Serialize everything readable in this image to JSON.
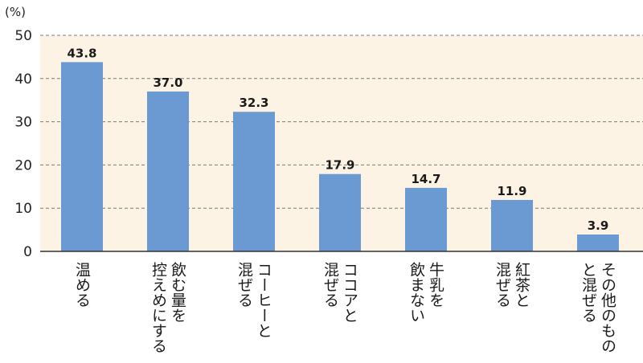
{
  "chart_data": {
    "type": "bar",
    "unit_label": "(%)",
    "title": "",
    "xlabel": "",
    "ylabel": "",
    "ylim": [
      0,
      50
    ],
    "yticks": [
      0,
      10,
      20,
      30,
      40,
      50
    ],
    "grid": true,
    "legend": "none",
    "categories": [
      [
        "温める"
      ],
      [
        "飲む量を",
        "控えめにする"
      ],
      [
        "コーヒーと",
        "混ぜる"
      ],
      [
        "ココアと",
        "混ぜる"
      ],
      [
        "牛乳を",
        "飲まない"
      ],
      [
        "紅茶と",
        "混ぜる"
      ],
      [
        "その他のもの",
        "と混ぜる"
      ]
    ],
    "values": [
      43.8,
      37.0,
      32.3,
      17.9,
      14.7,
      11.9,
      3.9
    ],
    "value_labels": [
      "43.8",
      "37.0",
      "32.3",
      "17.9",
      "14.7",
      "11.9",
      "3.9"
    ],
    "colors": {
      "bar": "#6b9ad3",
      "plot_background": "#fdf3e4",
      "grid": "#7a7a7a",
      "axis": "#333333"
    }
  }
}
